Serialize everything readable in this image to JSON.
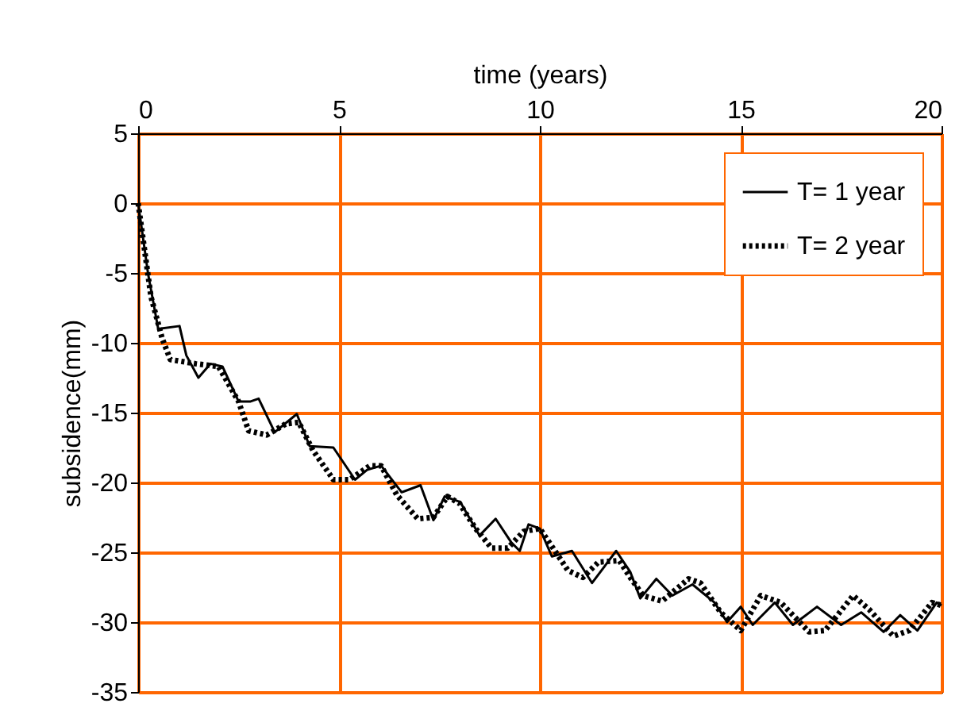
{
  "chart_data": {
    "type": "line",
    "xlabel": "time (years)",
    "ylabel": "subsidence(mm)",
    "xlim": [
      0,
      20
    ],
    "xticks": [
      0,
      5,
      10,
      15,
      20
    ],
    "ylim": [
      -35,
      5
    ],
    "yticks": [
      -35,
      -30,
      -25,
      -20,
      -15,
      -10,
      -5,
      0,
      5
    ],
    "grid": true,
    "legend": "top right",
    "marker": "none",
    "series": [
      {
        "name": "T= 1 year",
        "color": "#000000",
        "line_style": "solid",
        "x": [
          0,
          0.25,
          0.5,
          1.03,
          1.2,
          1.5,
          1.8,
          2.1,
          2.5,
          2.8,
          3.0,
          3.4,
          3.95,
          4.27,
          4.86,
          5.4,
          5.7,
          6.05,
          6.56,
          7.03,
          7.35,
          7.63,
          8.02,
          8.5,
          8.9,
          9.29,
          9.5,
          9.72,
          10,
          10.3,
          10.8,
          11.3,
          11.9,
          12.25,
          12.5,
          12.9,
          13.3,
          13.8,
          14.35,
          14.66,
          15,
          15.3,
          15.85,
          16.3,
          16.9,
          17.5,
          18,
          18.56,
          18.97,
          19.4,
          19.88,
          20
        ],
        "values": [
          0,
          -5.1,
          -9,
          -8.8,
          -10.9,
          -12.5,
          -11.5,
          -11.7,
          -14.2,
          -14.2,
          -14,
          -16.4,
          -15.1,
          -17.4,
          -17.5,
          -19.8,
          -19.1,
          -18.8,
          -20.7,
          -20.2,
          -22.7,
          -21,
          -21.4,
          -23.8,
          -22.6,
          -24.3,
          -24.9,
          -23,
          -23.3,
          -25.3,
          -24.9,
          -27.2,
          -24.9,
          -26.4,
          -28.3,
          -26.9,
          -28.1,
          -27.3,
          -28.6,
          -30,
          -28.9,
          -30.2,
          -28.6,
          -30.2,
          -28.9,
          -30.2,
          -29.3,
          -30.7,
          -29.5,
          -30.6,
          -28.6,
          -28.8
        ]
      },
      {
        "name": "T= 2 year",
        "color": "#000000",
        "line_style": "dotted",
        "x": [
          0,
          0.32,
          0.6,
          0.8,
          1.43,
          2.0,
          2.5,
          2.75,
          3.2,
          3.68,
          4.0,
          4.35,
          4.86,
          5.26,
          5.77,
          6.05,
          6.44,
          6.96,
          7.35,
          7.7,
          8.0,
          8.4,
          8.8,
          9.2,
          9.6,
          10,
          10.4,
          10.7,
          11.07,
          11.46,
          11.98,
          12.25,
          12.57,
          13.04,
          13.7,
          14.0,
          14.5,
          15,
          15.5,
          16,
          16.7,
          17.1,
          17.8,
          18.2,
          18.8,
          19.2,
          19.76,
          20
        ],
        "values": [
          0,
          -6.7,
          -9.7,
          -11.2,
          -11.5,
          -11.7,
          -14.2,
          -16.3,
          -16.6,
          -15.8,
          -15.7,
          -17.7,
          -19.8,
          -19.8,
          -18.8,
          -18.8,
          -20.9,
          -22.6,
          -22.5,
          -21,
          -21.5,
          -23.3,
          -24.7,
          -24.7,
          -23.5,
          -23.3,
          -25,
          -26.3,
          -26.8,
          -25.7,
          -25.6,
          -26.8,
          -28.1,
          -28.5,
          -26.9,
          -27.2,
          -29.3,
          -30.6,
          -28.1,
          -28.6,
          -30.7,
          -30.6,
          -28.1,
          -29.1,
          -31,
          -30.6,
          -28.6,
          -28.8
        ]
      }
    ]
  }
}
